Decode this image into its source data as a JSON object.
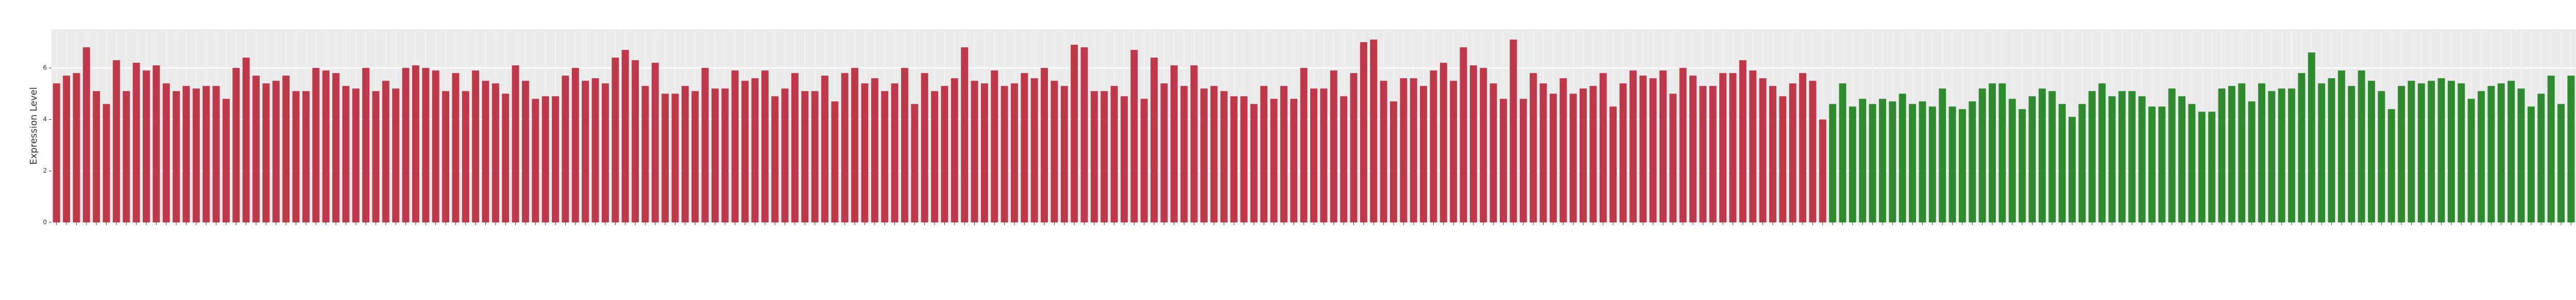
{
  "chart_data": {
    "type": "bar",
    "y_label": "Expression Level",
    "ylim": [
      0,
      7.5
    ],
    "yticks": [
      0,
      2,
      4,
      6
    ],
    "grid": true,
    "series": [
      {
        "color": "#c0394b",
        "values": [
          5.4,
          5.7,
          5.8,
          6.8,
          5.1,
          4.6,
          6.3,
          5.1,
          6.2,
          5.9,
          6.1,
          5.4,
          5.1,
          5.3,
          5.2,
          5.3,
          5.3,
          4.8,
          6.0,
          6.4,
          5.7,
          5.4,
          5.5,
          5.7,
          5.1,
          5.1,
          6.0,
          5.9,
          5.8,
          5.3,
          5.2,
          6.0,
          5.1,
          5.5,
          5.2,
          6.0,
          6.1,
          6.0,
          5.9,
          5.1,
          5.8,
          5.1,
          5.9,
          5.5,
          5.4,
          5.0,
          6.1,
          5.5,
          4.8,
          4.9,
          4.9,
          5.7,
          6.0,
          5.5,
          5.6,
          5.4,
          6.4,
          6.7,
          6.3,
          5.3,
          6.2,
          5.0,
          5.0,
          5.3,
          5.1,
          6.0,
          5.2,
          5.2,
          5.9,
          5.5,
          5.6,
          5.9,
          4.9,
          5.2,
          5.8,
          5.1,
          5.1,
          5.7,
          4.7,
          5.8,
          6.0,
          5.4,
          5.6,
          5.1,
          5.4,
          6.0,
          4.6,
          5.8,
          5.1,
          5.3,
          5.6,
          6.8,
          5.5,
          5.4,
          5.9,
          5.3,
          5.4,
          5.8,
          5.6,
          6.0,
          5.5,
          5.3,
          6.9,
          6.8,
          5.1,
          5.1,
          5.3,
          4.9,
          6.7,
          4.8,
          6.4,
          5.4,
          6.1,
          5.3,
          6.1,
          5.2,
          5.3,
          5.1,
          4.9,
          4.9,
          4.6,
          5.3,
          4.8,
          5.3,
          4.8,
          6.0,
          5.2,
          5.2,
          5.9,
          4.9,
          5.8,
          7.0,
          7.1,
          5.5,
          4.7,
          5.6,
          5.6,
          5.3,
          5.9,
          6.2,
          5.5,
          6.8,
          6.1,
          6.0,
          5.4,
          4.8,
          7.1,
          4.8,
          5.8,
          5.4,
          5.0,
          5.6,
          5.0,
          5.2,
          5.3,
          5.8,
          4.5,
          5.4,
          5.9,
          5.7,
          5.6,
          5.9,
          5.0,
          6.0,
          5.7,
          5.3,
          5.3,
          5.8,
          5.8,
          6.3,
          5.9,
          5.6,
          5.3,
          4.9,
          5.4,
          5.8,
          5.5,
          4.0
        ]
      },
      {
        "color": "#2e8b2e",
        "values": [
          4.6,
          5.4,
          4.5,
          4.8,
          4.6,
          4.8,
          4.7,
          5.0,
          4.6,
          4.7,
          4.5,
          5.2,
          4.5,
          4.4,
          4.7,
          5.2,
          5.4,
          5.4,
          4.8,
          4.4,
          4.9,
          5.2,
          5.1,
          4.6,
          4.1,
          4.6,
          5.1,
          5.4,
          4.9,
          5.1,
          5.1,
          4.9,
          4.5,
          4.5,
          5.2,
          4.9,
          4.6,
          4.3,
          4.3,
          5.2,
          5.3,
          5.4,
          4.7,
          5.4,
          5.1,
          5.2,
          5.2,
          5.8,
          6.6,
          5.4,
          5.6,
          5.9,
          5.3,
          5.9,
          5.5,
          5.1,
          4.4,
          5.3,
          5.5,
          5.4,
          5.5,
          5.6,
          5.5,
          5.4,
          4.8,
          5.1,
          5.3,
          5.4,
          5.5,
          5.2,
          4.5,
          5.0,
          5.7,
          4.6,
          5.7,
          5.6,
          4.8,
          4.8,
          4.8,
          5.5,
          4.6,
          6.1,
          6.1
        ]
      }
    ]
  }
}
